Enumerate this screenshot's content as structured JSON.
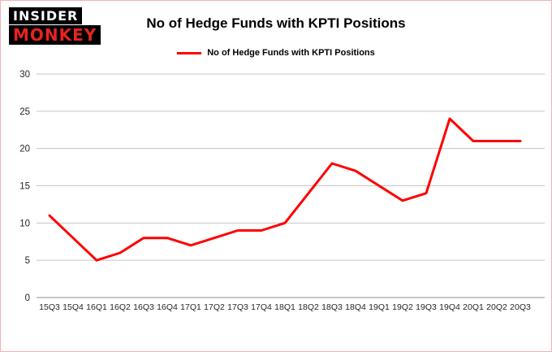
{
  "logo": {
    "line1": "INSIDER",
    "line2": "MONKEY"
  },
  "header": {
    "title": "No of Hedge Funds with KPTI Positions"
  },
  "legend": {
    "label": "No of Hedge Funds with KPTI Positions",
    "color": "#fe0000"
  },
  "chart_data": {
    "type": "line",
    "title": "No of Hedge Funds with KPTI Positions",
    "categories": [
      "15Q3",
      "15Q4",
      "16Q1",
      "16Q2",
      "16Q3",
      "16Q4",
      "17Q1",
      "17Q2",
      "17Q3",
      "17Q4",
      "18Q1",
      "18Q2",
      "18Q3",
      "18Q4",
      "19Q1",
      "19Q2",
      "19Q3",
      "19Q4",
      "20Q1",
      "20Q2",
      "20Q3"
    ],
    "values": [
      11,
      8,
      5,
      6,
      8,
      8,
      7,
      8,
      9,
      9,
      10,
      14,
      18,
      17,
      15,
      13,
      14,
      24,
      21,
      21,
      21
    ],
    "xlabel": "",
    "ylabel": "",
    "ylim": [
      0,
      30
    ],
    "yticks": [
      0,
      5,
      10,
      15,
      20,
      25,
      30
    ],
    "grid": true,
    "legend_position": "top",
    "line_color": "#fe0000",
    "gridline_color": "#c6c6c6",
    "axis_color": "#8c8c8c",
    "tick_label_color": "#262626"
  }
}
